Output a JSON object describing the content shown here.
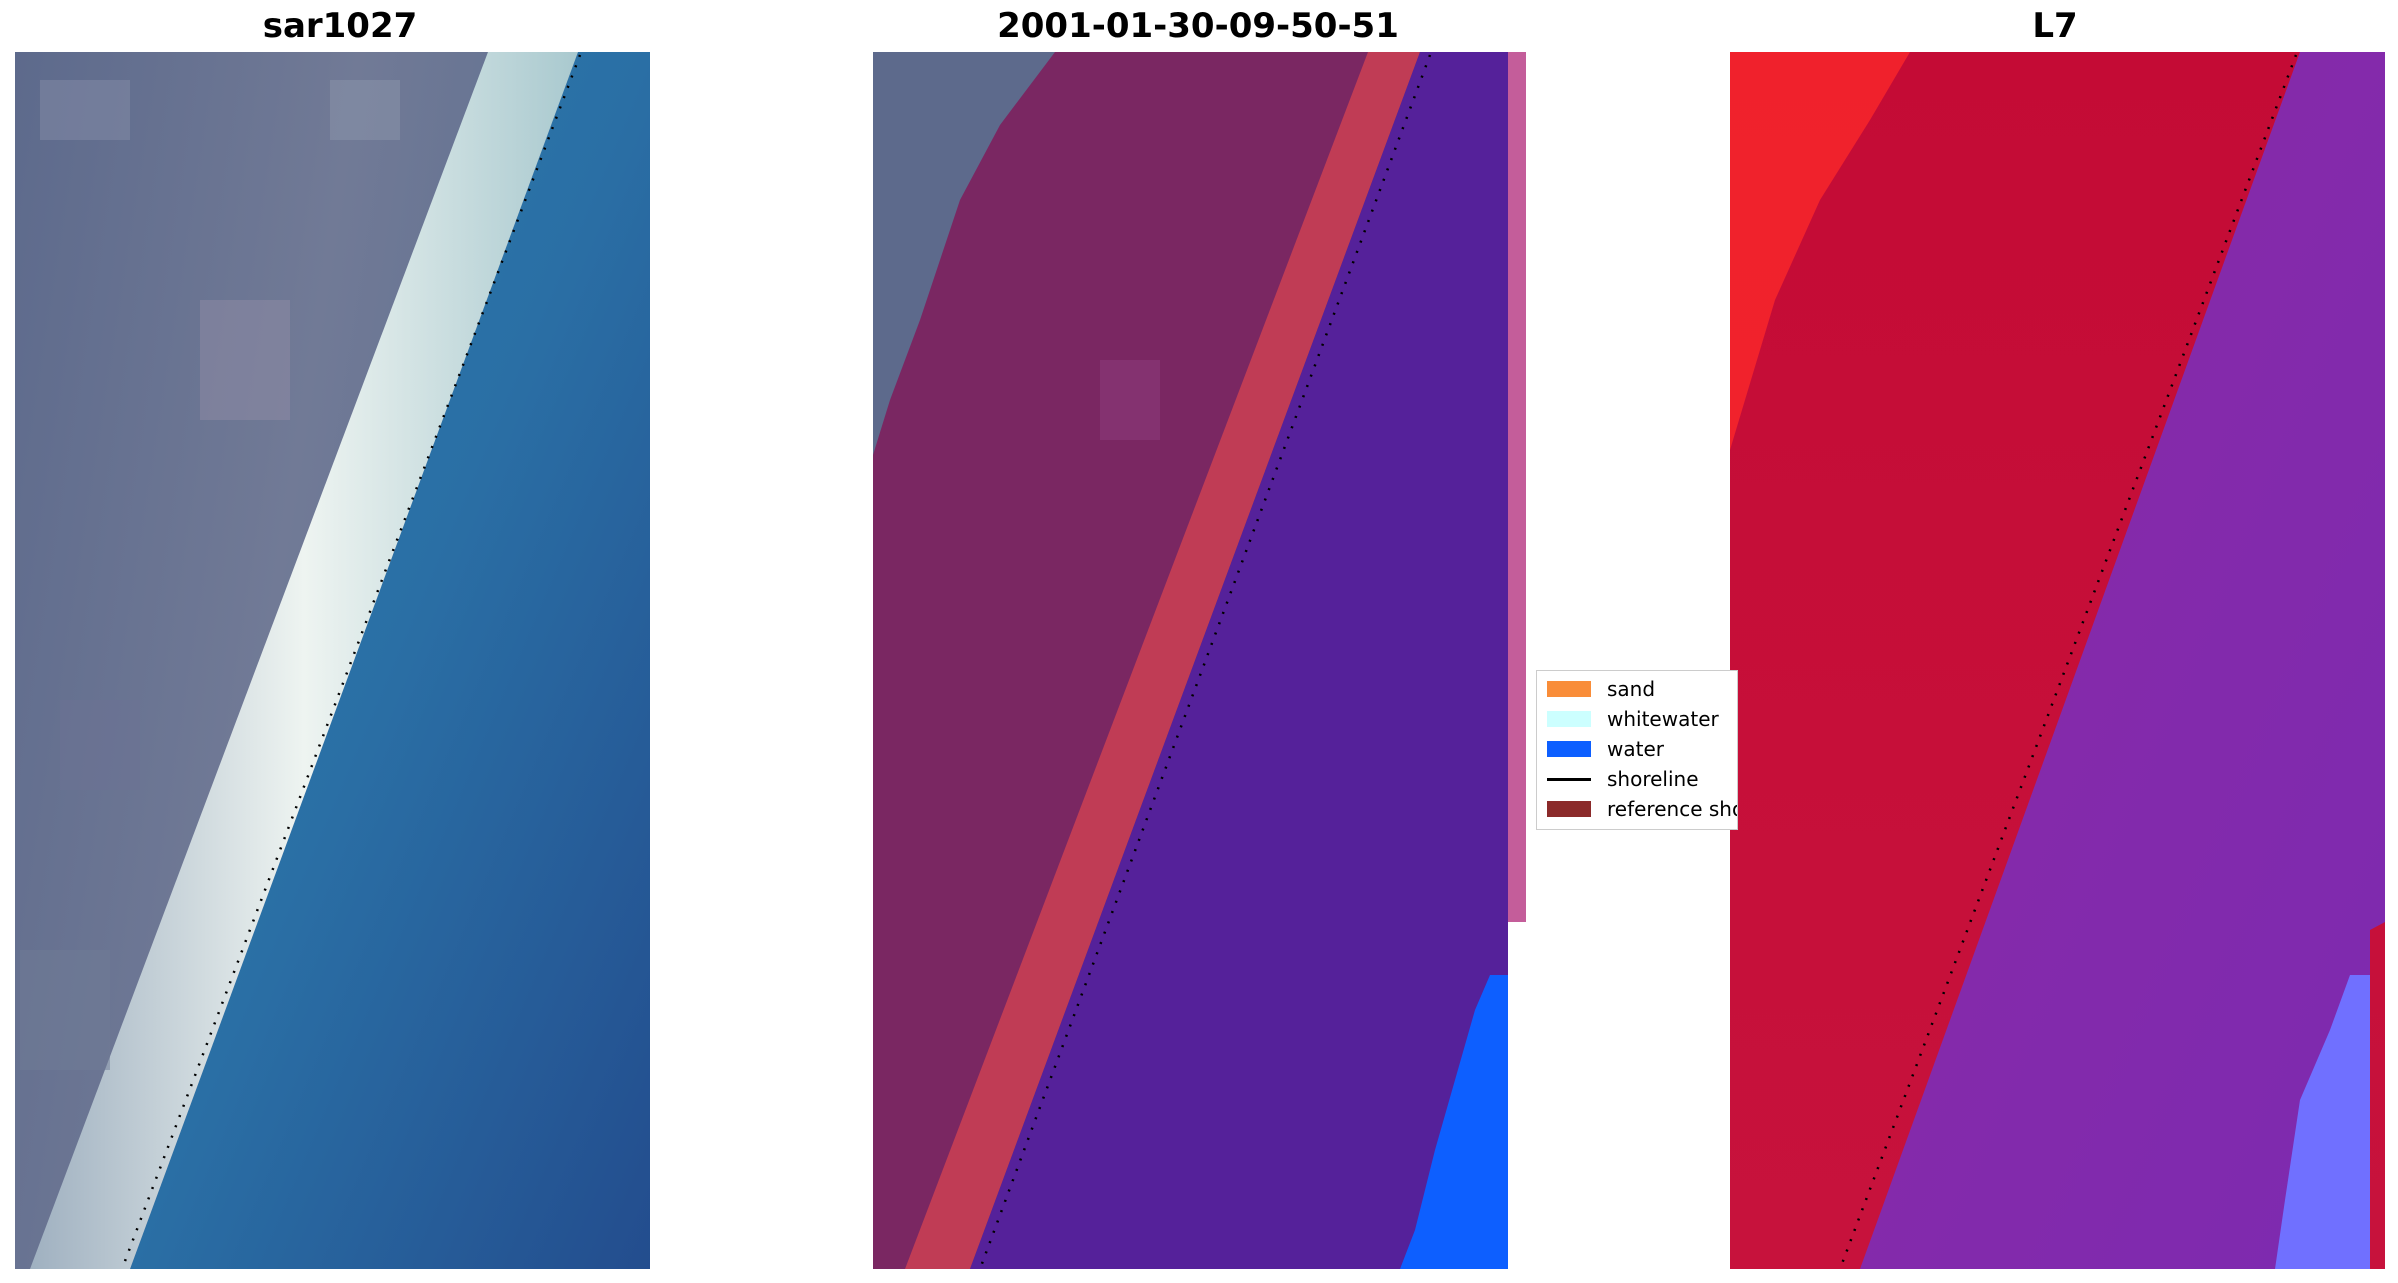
{
  "panels": [
    {
      "title": "sar1027"
    },
    {
      "title": "2001-01-30-09-50-51"
    },
    {
      "title": "L7"
    }
  ],
  "legend": [
    {
      "label": "sand",
      "color": "#f98d39",
      "kind": "patch"
    },
    {
      "label": "whitewater",
      "color": "#ccffff",
      "kind": "patch"
    },
    {
      "label": "water",
      "color": "#0d5fff",
      "kind": "patch"
    },
    {
      "label": "shoreline",
      "color": "#000000",
      "kind": "line"
    },
    {
      "label": "reference shoreline",
      "color": "#8b2a2a",
      "kind": "patch"
    }
  ]
}
